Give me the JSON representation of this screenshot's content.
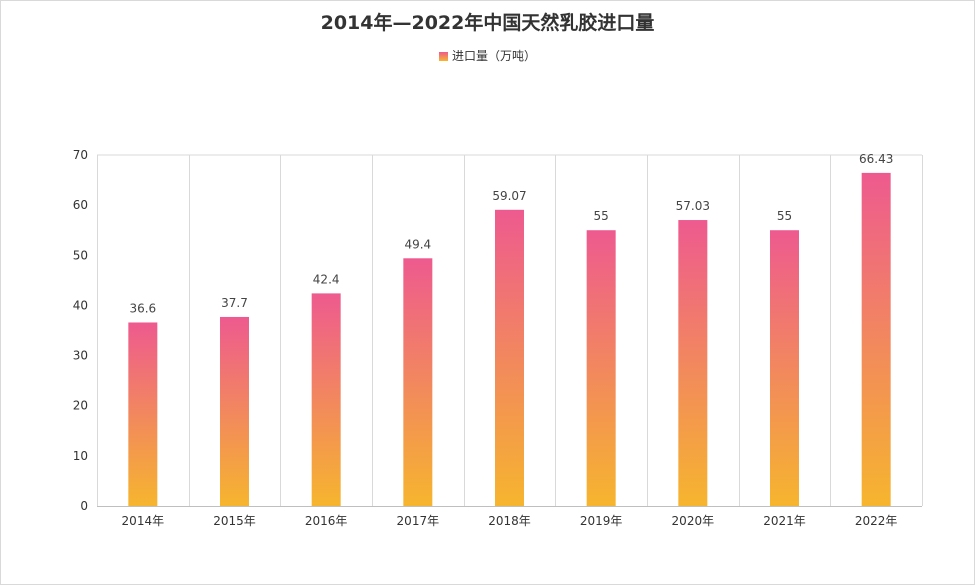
{
  "chart_data": {
    "type": "bar",
    "title": "2014年—2022年中国天然乳胶进口量",
    "categories": [
      "2014年",
      "2015年",
      "2016年",
      "2017年",
      "2018年",
      "2019年",
      "2020年",
      "2021年",
      "2022年"
    ],
    "series": [
      {
        "name": "进口量（万吨）",
        "values": [
          36.6,
          37.7,
          42.4,
          49.4,
          59.07,
          55,
          57.03,
          55,
          66.43
        ]
      }
    ],
    "data_labels": [
      "36.6",
      "37.7",
      "42.4",
      "49.4",
      "59.07",
      "55",
      "57.03",
      "55",
      "66.43"
    ],
    "yticks": [
      "0",
      "10",
      "20",
      "30",
      "40",
      "50",
      "60",
      "70"
    ],
    "ylim": [
      0,
      70
    ],
    "xlabel": "",
    "ylabel": "",
    "legend_position": "top-center",
    "grid": "vertical category lines",
    "colors": {
      "bar_top": "#ee5a8f",
      "bar_bottom": "#f6b52e",
      "grid": "#d9d9d9",
      "text": "#333333"
    }
  }
}
